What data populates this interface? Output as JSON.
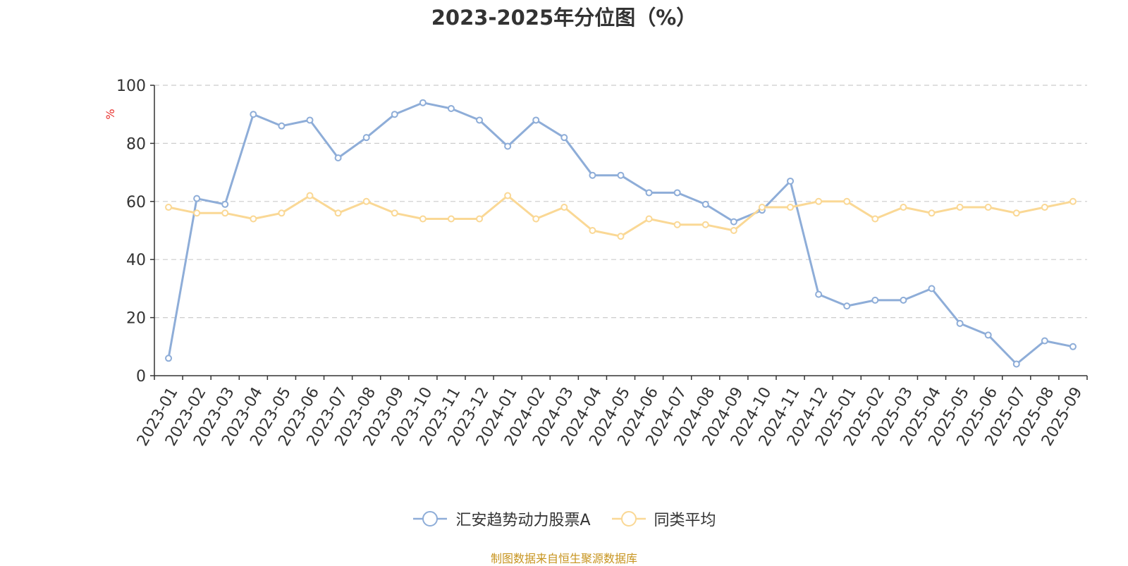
{
  "chart_data": {
    "type": "line",
    "title": "2023-2025年分位图（%）",
    "ylabel": "%",
    "ylim": [
      0,
      100
    ],
    "yticks": [
      0,
      20,
      40,
      60,
      80,
      100
    ],
    "grid": true,
    "legend_position": "bottom",
    "categories": [
      "2023-01",
      "2023-02",
      "2023-03",
      "2023-04",
      "2023-05",
      "2023-06",
      "2023-07",
      "2023-08",
      "2023-09",
      "2023-10",
      "2023-11",
      "2023-12",
      "2024-01",
      "2024-02",
      "2024-03",
      "2024-04",
      "2024-05",
      "2024-06",
      "2024-07",
      "2024-08",
      "2024-09",
      "2024-10",
      "2024-11",
      "2024-12",
      "2025-01",
      "2025-02",
      "2025-03",
      "2025-04",
      "2025-05",
      "2025-06",
      "2025-07",
      "2025-08",
      "2025-09"
    ],
    "series": [
      {
        "name": "汇安趋势动力股票A",
        "color": "#8eadd8",
        "values": [
          6,
          61,
          59,
          90,
          86,
          88,
          75,
          82,
          90,
          94,
          92,
          88,
          79,
          88,
          82,
          69,
          69,
          63,
          63,
          59,
          53,
          57,
          67,
          28,
          24,
          26,
          26,
          30,
          18,
          14,
          4,
          12,
          10
        ]
      },
      {
        "name": "同类平均",
        "color": "#fad895",
        "values": [
          58,
          56,
          56,
          54,
          56,
          62,
          56,
          60,
          56,
          54,
          54,
          54,
          62,
          54,
          58,
          50,
          48,
          54,
          52,
          52,
          50,
          58,
          58,
          60,
          60,
          54,
          58,
          56,
          58,
          58,
          56,
          58,
          60
        ]
      }
    ],
    "source": "制图数据来自恒生聚源数据库"
  }
}
